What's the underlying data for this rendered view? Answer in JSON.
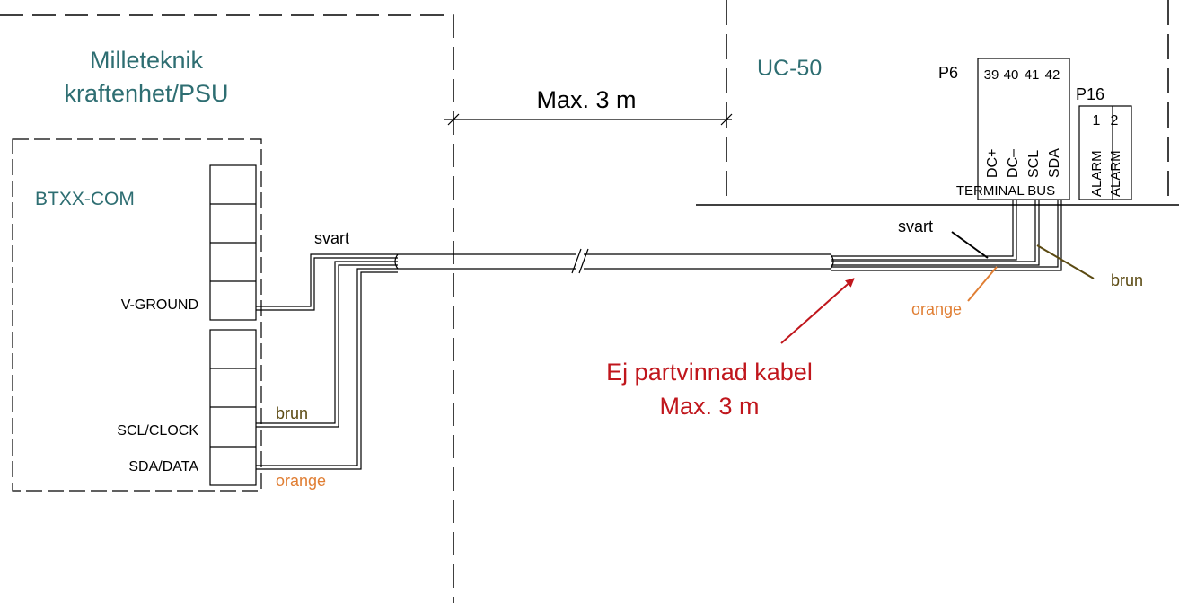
{
  "psu": {
    "title_line1": "Milleteknik",
    "title_line2": "kraftenhet/PSU",
    "module_label": "BTXX-COM",
    "pin_vground": "V-GROUND",
    "pin_scl": "SCL/CLOCK",
    "pin_sda": "SDA/DATA"
  },
  "distance": {
    "label": "Max. 3 m"
  },
  "uc50": {
    "title": "UC-50",
    "connector_p6": "P6",
    "p6_pins": [
      "39",
      "40",
      "41",
      "42"
    ],
    "p6_signals": [
      "DC+",
      "DC–",
      "SCL",
      "SDA"
    ],
    "terminal_bus": "TERMINAL BUS",
    "connector_p16": "P16",
    "p16_pins": [
      "1",
      "2"
    ],
    "p16_signals": [
      "ALARM",
      "ALARM"
    ]
  },
  "wires": {
    "black_left": "svart",
    "brown_left": "brun",
    "orange_left": "orange",
    "black_right": "svart",
    "brown_right": "brun",
    "orange_right": "orange"
  },
  "note": {
    "line1": "Ej partvinnad kabel",
    "line2": "Max. 3 m"
  },
  "colors": {
    "teal": "#2e6e72",
    "red": "#c0161c",
    "brown": "#5b4a12",
    "orange": "#e07e33",
    "line": "#000000"
  }
}
